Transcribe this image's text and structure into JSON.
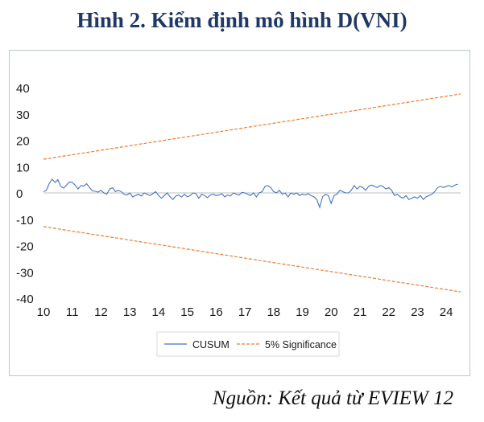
{
  "title": "Hình 2. Kiểm định mô hình D(VNI)",
  "source": "Nguồn: Kết quả từ EVIEW 12",
  "colors": {
    "cusum": "#4472c4",
    "significance": "#ed7d31",
    "axis": "#bfbfbf",
    "title": "#1f3864"
  },
  "chart_data": {
    "type": "line",
    "title": "",
    "xlabel": "",
    "ylabel": "",
    "x_ticks": [
      "10",
      "11",
      "12",
      "13",
      "14",
      "15",
      "16",
      "17",
      "18",
      "19",
      "20",
      "21",
      "22",
      "23",
      "24"
    ],
    "y_ticks": [
      "40",
      "30",
      "20",
      "10",
      "0",
      "-10",
      "-20",
      "-30",
      "-40"
    ],
    "xlim": [
      10,
      24.5
    ],
    "ylim": [
      -40,
      40
    ],
    "grid": false,
    "legend_position": "bottom",
    "series": [
      {
        "name": "CUSUM",
        "style": "solid",
        "x": [
          10.0,
          10.1,
          10.2,
          10.3,
          10.4,
          10.5,
          10.6,
          10.7,
          10.8,
          10.9,
          11.0,
          11.1,
          11.2,
          11.3,
          11.4,
          11.5,
          11.6,
          11.7,
          11.8,
          11.9,
          12.0,
          12.1,
          12.2,
          12.3,
          12.4,
          12.5,
          12.6,
          12.7,
          12.8,
          12.9,
          13.0,
          13.1,
          13.2,
          13.3,
          13.4,
          13.5,
          13.6,
          13.7,
          13.8,
          13.9,
          14.0,
          14.1,
          14.2,
          14.3,
          14.4,
          14.5,
          14.6,
          14.7,
          14.8,
          14.9,
          15.0,
          15.1,
          15.2,
          15.3,
          15.4,
          15.5,
          15.6,
          15.7,
          15.8,
          15.9,
          16.0,
          16.1,
          16.2,
          16.3,
          16.4,
          16.5,
          16.6,
          16.7,
          16.8,
          16.9,
          17.0,
          17.1,
          17.2,
          17.3,
          17.4,
          17.5,
          17.6,
          17.7,
          17.8,
          17.9,
          18.0,
          18.1,
          18.2,
          18.3,
          18.4,
          18.5,
          18.6,
          18.7,
          18.8,
          18.9,
          19.0,
          19.1,
          19.2,
          19.3,
          19.4,
          19.5,
          19.6,
          19.7,
          19.8,
          19.9,
          20.0,
          20.1,
          20.2,
          20.3,
          20.4,
          20.5,
          20.6,
          20.7,
          20.8,
          20.9,
          21.0,
          21.1,
          21.2,
          21.3,
          21.4,
          21.5,
          21.6,
          21.7,
          21.8,
          21.9,
          22.0,
          22.1,
          22.2,
          22.3,
          22.4,
          22.5,
          22.6,
          22.7,
          22.8,
          22.9,
          23.0,
          23.1,
          23.2,
          23.3,
          23.4,
          23.5,
          23.6,
          23.7,
          23.8,
          23.9,
          24.0,
          24.1,
          24.2,
          24.3,
          24.4
        ],
        "values": [
          0.5,
          1.0,
          3.5,
          5.2,
          4.0,
          5.0,
          2.5,
          1.8,
          3.0,
          4.2,
          4.0,
          3.0,
          1.5,
          2.8,
          2.6,
          3.5,
          2.0,
          0.8,
          0.6,
          0.3,
          1.0,
          0.0,
          -0.5,
          1.5,
          2.0,
          0.5,
          1.0,
          0.5,
          -0.5,
          -0.8,
          0.0,
          -1.5,
          -1.0,
          -0.5,
          -1.2,
          0.0,
          -0.5,
          -1.0,
          -0.3,
          0.5,
          -1.0,
          -2.0,
          -1.0,
          0.0,
          -1.5,
          -2.5,
          -1.2,
          -0.8,
          -1.6,
          -0.5,
          -1.5,
          -1.0,
          0.0,
          -0.3,
          -2.0,
          -0.5,
          -1.0,
          -1.8,
          -0.8,
          -0.5,
          -1.0,
          -0.8,
          -0.3,
          -1.5,
          -0.8,
          -1.2,
          0.0,
          -0.5,
          -0.8,
          0.2,
          0.0,
          -0.5,
          -1.0,
          0.0,
          -1.5,
          0.0,
          0.5,
          2.5,
          2.8,
          2.0,
          0.5,
          0.0,
          1.0,
          -0.5,
          0.0,
          -1.5,
          0.0,
          -0.5,
          0.0,
          -1.0,
          -0.5,
          -0.8,
          -0.3,
          -1.0,
          -1.5,
          -2.5,
          -5.5,
          -1.5,
          -0.5,
          -1.0,
          -4.0,
          -1.0,
          -0.5,
          1.0,
          0.5,
          0.0,
          0.0,
          1.0,
          2.8,
          1.5,
          2.5,
          2.0,
          1.0,
          2.5,
          3.0,
          2.5,
          2.0,
          2.8,
          2.5,
          1.5,
          2.0,
          1.0,
          -1.0,
          -0.5,
          -1.5,
          -2.0,
          -1.0,
          -2.5,
          -2.0,
          -1.5,
          -2.0,
          -1.0,
          -2.5,
          -1.5,
          -1.0,
          -0.5,
          0.5,
          2.0,
          2.5,
          2.0,
          2.5,
          2.8,
          2.3,
          3.0,
          3.3
        ]
      },
      {
        "name": "5% Significance",
        "style": "dashed",
        "x": [
          10.0,
          24.5
        ],
        "values": [
          12.8,
          37.6
        ]
      },
      {
        "name": "",
        "style": "dashed",
        "legend": false,
        "x": [
          10.0,
          24.5
        ],
        "values": [
          -12.8,
          -37.6
        ]
      }
    ]
  }
}
